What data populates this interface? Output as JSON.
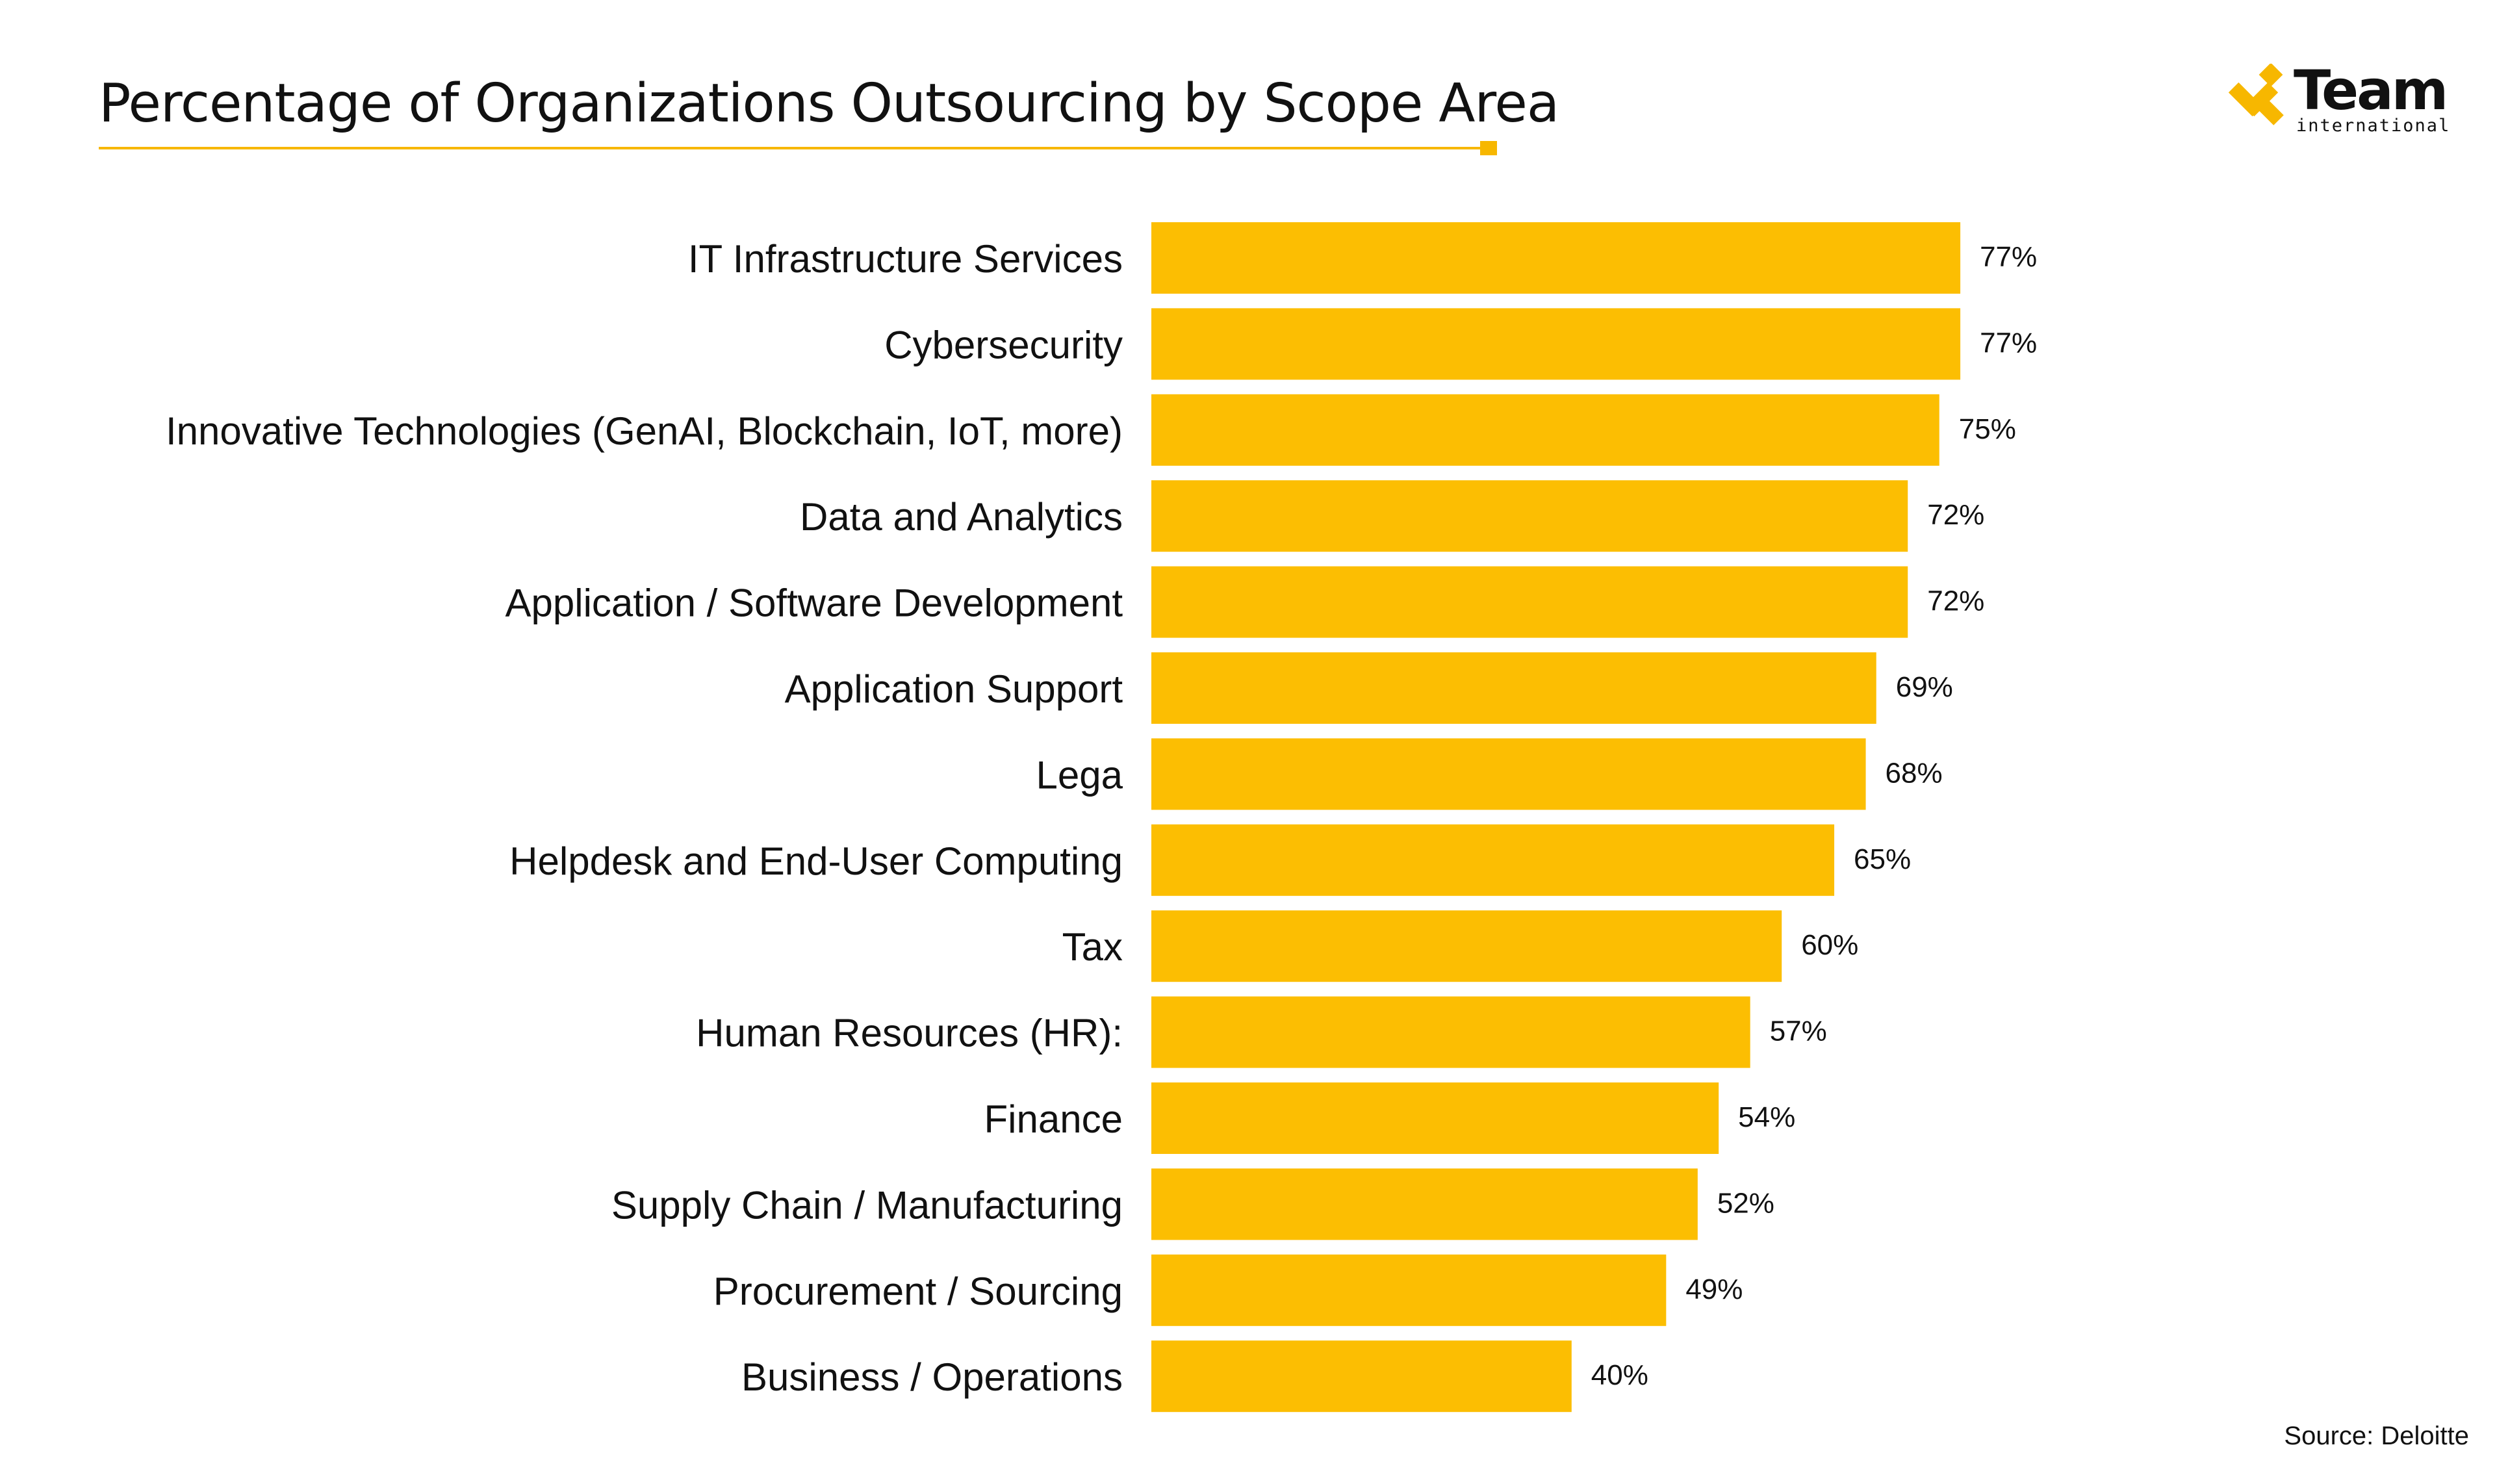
{
  "header": {
    "title": "Percentage of Organizations Outsourcing by Scope Area"
  },
  "brand": {
    "name": "Team",
    "tagline": "international",
    "accent_color": "#f7b700"
  },
  "footer": {
    "source": "Source: Deloitte"
  },
  "chart_data": {
    "type": "bar",
    "orientation": "horizontal",
    "title": "Percentage of Organizations Outsourcing by Scope Area",
    "xlabel": "",
    "ylabel": "",
    "xlim": [
      0,
      100
    ],
    "grid": false,
    "bar_color": "#fcbe02",
    "categories": [
      "IT Infrastructure Services",
      "Cybersecurity",
      "Innovative Technologies (GenAI, Blockchain, IoT, more)",
      "Data and Analytics",
      "Application / Software Development",
      "Application Support",
      "Lega",
      "Helpdesk and End-User Computing",
      "Tax",
      "Human Resources (HR):",
      "Finance",
      "Supply Chain / Manufacturing",
      "Procurement / Sourcing",
      "Business / Operations"
    ],
    "values": [
      77,
      77,
      75,
      72,
      72,
      69,
      68,
      65,
      60,
      57,
      54,
      52,
      49,
      40
    ],
    "value_labels": [
      "77%",
      "77%",
      "75%",
      "72%",
      "72%",
      "69%",
      "68%",
      "65%",
      "60%",
      "57%",
      "54%",
      "52%",
      "49%",
      "40%"
    ]
  }
}
